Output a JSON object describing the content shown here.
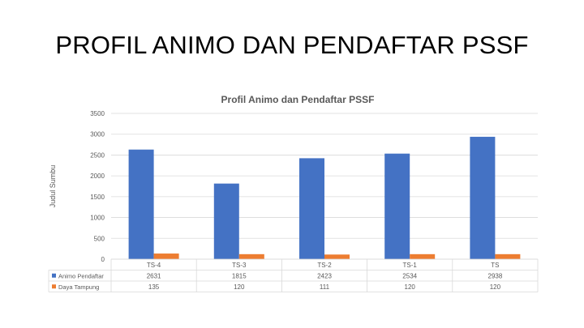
{
  "slide": {
    "title": "PROFIL ANIMO DAN PENDAFTAR PSSF"
  },
  "colors": {
    "animo": "#4472C4",
    "daya": "#ED7D31",
    "grid": "#D9D9D9",
    "text": "#595959"
  },
  "chart_data": {
    "type": "bar",
    "title": "Profil Animo dan Pendaftar PSSF",
    "ylabel": "Judul Sumbu",
    "xlabel": "",
    "ylim": [
      0,
      3500
    ],
    "yticks": [
      0,
      500,
      1000,
      1500,
      2000,
      2500,
      3000,
      3500
    ],
    "categories": [
      "TS-4",
      "TS-3",
      "TS-2",
      "TS-1",
      "TS"
    ],
    "series": [
      {
        "name": "Animo Pendaftar",
        "values": [
          2631,
          1815,
          2423,
          2534,
          2938
        ]
      },
      {
        "name": "Daya Tampung",
        "values": [
          135,
          120,
          111,
          120,
          120
        ]
      }
    ],
    "grid": true,
    "legend": "data-table",
    "data_table": true
  }
}
